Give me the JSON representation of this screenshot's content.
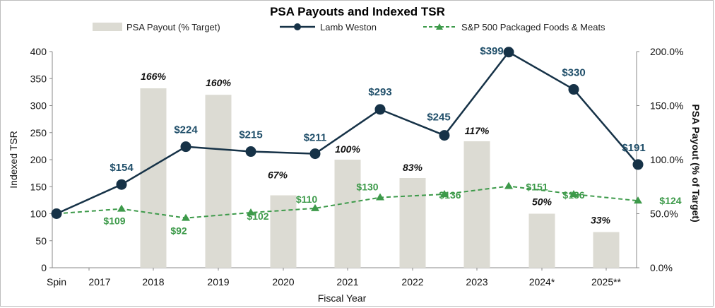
{
  "chart_data": {
    "type": "bar+line",
    "title": "PSA Payouts and Indexed TSR",
    "categories": [
      "Spin",
      "2017",
      "2018",
      "2019",
      "2020",
      "2021",
      "2022",
      "2023",
      "2024*",
      "2025**"
    ],
    "xlabel": "Fiscal Year",
    "ylabel_left": "Indexed TSR",
    "ylabel_right": "PSA Payout (% of Target)",
    "ylim_left": [
      0,
      400
    ],
    "ylim_right": [
      0,
      200
    ],
    "yticks_left": [
      "0",
      "50",
      "100",
      "150",
      "200",
      "250",
      "300",
      "350",
      "400"
    ],
    "yticks_right": [
      "0.0%",
      "50.0%",
      "100.0%",
      "150.0%",
      "200.0%"
    ],
    "legend": [
      "PSA Payout (% Target)",
      "Lamb Weston",
      "S&P 500 Packaged Foods & Meats"
    ],
    "psa_payout": {
      "name": "PSA Payout (% Target)",
      "categories": [
        "2018",
        "2019",
        "2020",
        "2021",
        "2022",
        "2023",
        "2024*",
        "2025**"
      ],
      "values": [
        166,
        160,
        67,
        100,
        83,
        117,
        50,
        33
      ],
      "labels": [
        "166%",
        "160%",
        "67%",
        "100%",
        "83%",
        "117%",
        "50%",
        "33%"
      ]
    },
    "lamb_weston": {
      "name": "Lamb Weston",
      "values": [
        100,
        154,
        224,
        215,
        211,
        293,
        245,
        399,
        330,
        191
      ],
      "labels": [
        "",
        "$154",
        "$224",
        "$215",
        "$211",
        "$293",
        "$245",
        "$399",
        "$330",
        "$191"
      ]
    },
    "sp500": {
      "name": "S&P 500 Packaged Foods & Meats",
      "values": [
        100,
        109,
        92,
        102,
        110,
        130,
        136,
        151,
        136,
        124
      ],
      "labels": [
        "",
        "$109",
        "$92",
        "$102",
        "$110",
        "$130",
        "$136",
        "$151",
        "$136",
        "$124"
      ]
    },
    "colors": {
      "bar": "#dcdbd3",
      "lamb_weston": "#163247",
      "lamb_weston_label": "#1f4e69",
      "sp500": "#3d9a4a"
    }
  }
}
